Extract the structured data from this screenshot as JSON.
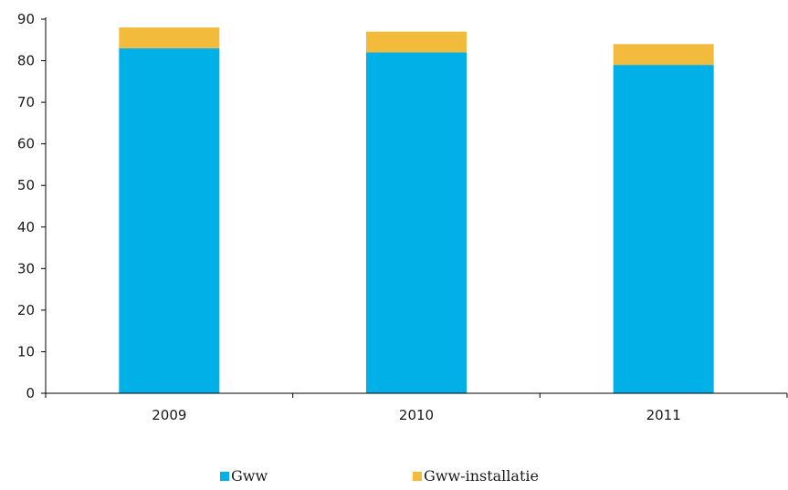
{
  "chart_data": {
    "type": "bar",
    "stacked": true,
    "categories": [
      "2009",
      "2010",
      "2011"
    ],
    "series": [
      {
        "name": "Gww",
        "values": [
          83,
          82,
          79
        ],
        "color": "#00b0e6"
      },
      {
        "name": "Gww-installatie",
        "values": [
          5,
          5,
          5
        ],
        "color": "#f2bb3c"
      }
    ],
    "title": "",
    "xlabel": "",
    "ylabel": "",
    "ylim": [
      0,
      90
    ],
    "yticks": [
      0,
      10,
      20,
      30,
      40,
      50,
      60,
      70,
      80,
      90
    ],
    "grid": false,
    "legend_position": "bottom"
  }
}
